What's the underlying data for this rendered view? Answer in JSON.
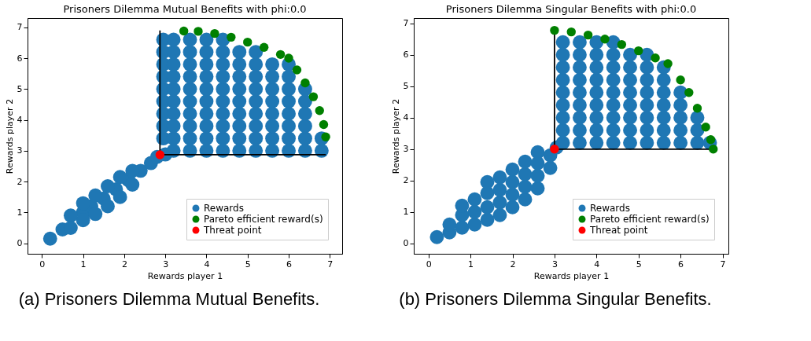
{
  "chart_data": [
    {
      "type": "scatter",
      "title": "Prisoners Dilemma Mutual Benefits with phi:0.0",
      "xlabel": "Rewards player 1",
      "ylabel": "Rewards player 2",
      "xlim": [
        -0.35,
        7.3
      ],
      "ylim": [
        -0.34,
        7.3
      ],
      "xticks": [
        0,
        1,
        2,
        3,
        4,
        5,
        6,
        7
      ],
      "yticks": [
        0,
        1,
        2,
        3,
        4,
        5,
        6,
        7
      ],
      "grid": false,
      "legend": "bottom right",
      "annotations": [
        "(a) Prisoners Dilemma Mutual Benefits."
      ],
      "series": [
        {
          "name": "Rewards",
          "marker": "circle",
          "color": "#1f77b4",
          "x": [
            0.2,
            0.5,
            1.0,
            1.2,
            1.5,
            1.8,
            2.1,
            2.4,
            2.65,
            1.0,
            1.3,
            1.6,
            1.9,
            2.2,
            1.0,
            1.3,
            1.6,
            1.9,
            2.2,
            0.7,
            0.7,
            2.8,
            3.0,
            2.95,
            2.95,
            2.95,
            2.95,
            2.95,
            2.95,
            2.95,
            2.95,
            2.95,
            3.2,
            3.2,
            3.2,
            3.2,
            3.2,
            3.2,
            3.2,
            3.2,
            3.2,
            3.2,
            3.6,
            3.6,
            3.6,
            3.6,
            3.6,
            3.6,
            3.6,
            3.6,
            3.6,
            3.6,
            4.0,
            4.0,
            4.0,
            4.0,
            4.0,
            4.0,
            4.0,
            4.0,
            4.0,
            4.0,
            4.4,
            4.4,
            4.4,
            4.4,
            4.4,
            4.4,
            4.4,
            4.4,
            4.4,
            4.4,
            4.8,
            4.8,
            4.8,
            4.8,
            4.8,
            4.8,
            4.8,
            4.8,
            4.8,
            5.2,
            5.2,
            5.2,
            5.2,
            5.2,
            5.2,
            5.2,
            5.2,
            5.2,
            5.6,
            5.6,
            5.6,
            5.6,
            5.6,
            5.6,
            5.6,
            5.6,
            6.0,
            6.0,
            6.0,
            6.0,
            6.0,
            6.0,
            6.0,
            6.0,
            6.4,
            6.4,
            6.4,
            6.4,
            6.4,
            6.4,
            6.8,
            6.8
          ],
          "values": [
            0.15,
            0.45,
            1.0,
            1.2,
            1.45,
            1.75,
            2.05,
            2.35,
            2.6,
            1.3,
            1.55,
            1.85,
            2.15,
            2.35,
            0.75,
            0.95,
            1.2,
            1.5,
            1.9,
            0.9,
            0.5,
            2.8,
            2.88,
            3.4,
            3.8,
            4.2,
            4.6,
            5.0,
            5.4,
            5.8,
            6.2,
            6.6,
            3.0,
            3.4,
            3.8,
            4.2,
            4.6,
            5.0,
            5.4,
            5.8,
            6.2,
            6.6,
            3.0,
            3.4,
            3.8,
            4.2,
            4.6,
            5.0,
            5.4,
            5.8,
            6.2,
            6.6,
            3.0,
            3.4,
            3.8,
            4.2,
            4.6,
            5.0,
            5.4,
            5.8,
            6.2,
            6.6,
            3.0,
            3.4,
            3.8,
            4.2,
            4.6,
            5.0,
            5.4,
            5.8,
            6.2,
            6.6,
            3.0,
            3.4,
            3.8,
            4.2,
            4.6,
            5.0,
            5.4,
            5.8,
            6.2,
            3.0,
            3.4,
            3.8,
            4.2,
            4.6,
            5.0,
            5.4,
            5.8,
            6.2,
            3.0,
            3.4,
            3.8,
            4.2,
            4.6,
            5.0,
            5.4,
            5.8,
            3.0,
            3.4,
            3.8,
            4.2,
            4.6,
            5.0,
            5.4,
            5.8,
            3.0,
            3.4,
            3.8,
            4.2,
            4.6,
            5.0,
            3.0,
            3.4
          ]
        },
        {
          "type": "line",
          "marker": "none",
          "line_style": "solid",
          "color": "#000000",
          "x": [
            2.87,
            2.87,
            6.9
          ],
          "values": [
            6.9,
            2.87,
            2.87
          ]
        },
        {
          "name": "Pareto efficient reward(s)",
          "marker": "circle",
          "color": "#008000",
          "x": [
            3.45,
            3.8,
            4.2,
            4.6,
            5.0,
            5.4,
            5.8,
            6.0,
            6.2,
            6.4,
            6.6,
            6.75,
            6.85,
            6.9
          ],
          "values": [
            6.88,
            6.87,
            6.8,
            6.68,
            6.52,
            6.35,
            6.12,
            6.0,
            5.62,
            5.2,
            4.75,
            4.3,
            3.85,
            3.45
          ]
        },
        {
          "name": "Threat point",
          "marker": "circle",
          "color": "#ff0000",
          "x": [
            2.87
          ],
          "values": [
            2.87
          ]
        }
      ]
    },
    {
      "type": "scatter",
      "title": "Prisoners Dilemma Singular Benefits with phi:0.0",
      "xlabel": "Rewards player 1",
      "ylabel": "Rewards player 2",
      "xlim": [
        -0.35,
        7.14
      ],
      "ylim": [
        -0.33,
        7.17
      ],
      "xticks": [
        0,
        1,
        2,
        3,
        4,
        5,
        6,
        7
      ],
      "yticks": [
        0,
        1,
        2,
        3,
        4,
        5,
        6,
        7
      ],
      "grid": false,
      "legend": "bottom right",
      "annotations": [
        "(b) Prisoners Dilemma Singular Benefits."
      ],
      "series": [
        {
          "name": "Rewards",
          "marker": "circle",
          "color": "#1f77b4",
          "x": [
            0.2,
            0.5,
            0.5,
            0.8,
            0.8,
            0.8,
            1.1,
            1.1,
            1.1,
            1.4,
            1.4,
            1.4,
            1.4,
            1.7,
            1.7,
            1.7,
            1.7,
            2.0,
            2.0,
            2.0,
            2.0,
            2.3,
            2.3,
            2.3,
            2.3,
            2.6,
            2.6,
            2.6,
            2.6,
            2.9,
            2.9,
            3.05,
            3.2,
            3.2,
            3.2,
            3.2,
            3.2,
            3.2,
            3.2,
            3.2,
            3.2,
            3.6,
            3.6,
            3.6,
            3.6,
            3.6,
            3.6,
            3.6,
            3.6,
            3.6,
            4.0,
            4.0,
            4.0,
            4.0,
            4.0,
            4.0,
            4.0,
            4.0,
            4.0,
            4.4,
            4.4,
            4.4,
            4.4,
            4.4,
            4.4,
            4.4,
            4.4,
            4.4,
            4.8,
            4.8,
            4.8,
            4.8,
            4.8,
            4.8,
            4.8,
            4.8,
            5.2,
            5.2,
            5.2,
            5.2,
            5.2,
            5.2,
            5.2,
            5.2,
            5.6,
            5.6,
            5.6,
            5.6,
            5.6,
            5.6,
            5.6,
            6.0,
            6.0,
            6.0,
            6.0,
            6.0,
            6.4,
            6.4,
            6.4,
            6.7
          ],
          "values": [
            0.2,
            0.35,
            0.6,
            0.5,
            0.9,
            1.2,
            0.6,
            1.0,
            1.4,
            0.75,
            1.15,
            1.6,
            1.95,
            0.9,
            1.3,
            1.7,
            2.1,
            1.15,
            1.55,
            1.95,
            2.35,
            1.4,
            1.8,
            2.2,
            2.6,
            1.75,
            2.15,
            2.55,
            2.9,
            2.4,
            2.8,
            3.05,
            3.2,
            3.6,
            4.0,
            4.4,
            4.8,
            5.2,
            5.6,
            6.0,
            6.4,
            3.2,
            3.6,
            4.0,
            4.4,
            4.8,
            5.2,
            5.6,
            6.0,
            6.4,
            3.2,
            3.6,
            4.0,
            4.4,
            4.8,
            5.2,
            5.6,
            6.0,
            6.4,
            3.2,
            3.6,
            4.0,
            4.4,
            4.8,
            5.2,
            5.6,
            6.0,
            6.4,
            3.2,
            3.6,
            4.0,
            4.4,
            4.8,
            5.2,
            5.6,
            6.0,
            3.2,
            3.6,
            4.0,
            4.4,
            4.8,
            5.2,
            5.6,
            6.0,
            3.2,
            3.6,
            4.0,
            4.4,
            4.8,
            5.2,
            5.6,
            3.2,
            3.6,
            4.0,
            4.4,
            4.8,
            3.2,
            3.6,
            4.0,
            3.2
          ]
        },
        {
          "type": "line",
          "marker": "none",
          "line_style": "solid",
          "color": "#000000",
          "x": [
            3.0,
            3.0,
            6.78
          ],
          "values": [
            6.75,
            3.0,
            3.0
          ]
        },
        {
          "name": "Pareto efficient reward(s)",
          "marker": "circle",
          "color": "#008000",
          "x": [
            3.0,
            3.4,
            3.8,
            4.2,
            4.6,
            5.0,
            5.4,
            5.7,
            6.0,
            6.2,
            6.4,
            6.6,
            6.72,
            6.78
          ],
          "values": [
            6.78,
            6.73,
            6.63,
            6.5,
            6.33,
            6.13,
            5.9,
            5.72,
            5.2,
            4.8,
            4.3,
            3.7,
            3.3,
            3.0
          ]
        },
        {
          "name": "Threat point",
          "marker": "circle",
          "color": "#ff0000",
          "x": [
            3.0
          ],
          "values": [
            3.0
          ]
        }
      ]
    }
  ]
}
